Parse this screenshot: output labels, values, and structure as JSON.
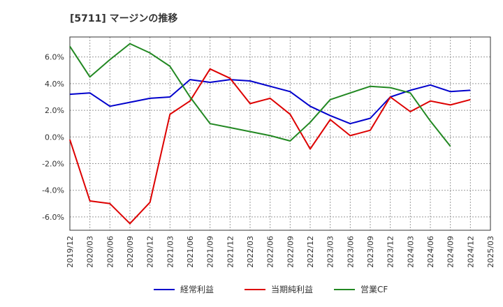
{
  "chart_data": {
    "type": "line",
    "title": "[5711]  マージンの推移",
    "categories": [
      "2019/12",
      "2020/03",
      "2020/06",
      "2020/09",
      "2020/12",
      "2021/03",
      "2021/06",
      "2021/09",
      "2021/12",
      "2022/03",
      "2022/06",
      "2022/09",
      "2022/12",
      "2023/03",
      "2023/06",
      "2023/09",
      "2023/12",
      "2024/03",
      "2024/06",
      "2024/09",
      "2024/12",
      "2025/03"
    ],
    "ylim": [
      -7.0,
      7.5
    ],
    "yticks": [
      6.0,
      4.0,
      2.0,
      0.0,
      -2.0,
      -4.0,
      -6.0
    ],
    "ytick_labels": [
      "6.0%",
      "4.0%",
      "2.0%",
      "0.0%",
      "-2.0%",
      "-4.0%",
      "-6.0%"
    ],
    "grid": true,
    "legend_position": "bottom",
    "series": [
      {
        "name": "経常利益",
        "color": "#0000cc",
        "values": [
          3.2,
          3.3,
          2.3,
          2.6,
          2.9,
          3.0,
          4.3,
          4.1,
          4.3,
          4.2,
          3.8,
          3.4,
          2.3,
          1.6,
          1.0,
          1.4,
          3.0,
          3.5,
          3.9,
          3.4,
          3.5,
          null
        ]
      },
      {
        "name": "当期純利益",
        "color": "#dd0000",
        "values": [
          -0.2,
          -4.8,
          -5.0,
          -6.5,
          -4.9,
          1.7,
          2.7,
          5.1,
          4.4,
          2.5,
          2.9,
          1.7,
          -0.9,
          1.3,
          0.1,
          0.5,
          3.0,
          1.9,
          2.7,
          2.4,
          2.8,
          null
        ]
      },
      {
        "name": "営業CF",
        "color": "#228822",
        "values": [
          6.8,
          4.5,
          5.8,
          7.0,
          6.3,
          5.3,
          3.0,
          1.0,
          0.7,
          0.4,
          0.1,
          -0.3,
          1.1,
          2.8,
          3.3,
          3.8,
          3.7,
          3.3,
          1.2,
          -0.7,
          null,
          null
        ]
      }
    ]
  }
}
